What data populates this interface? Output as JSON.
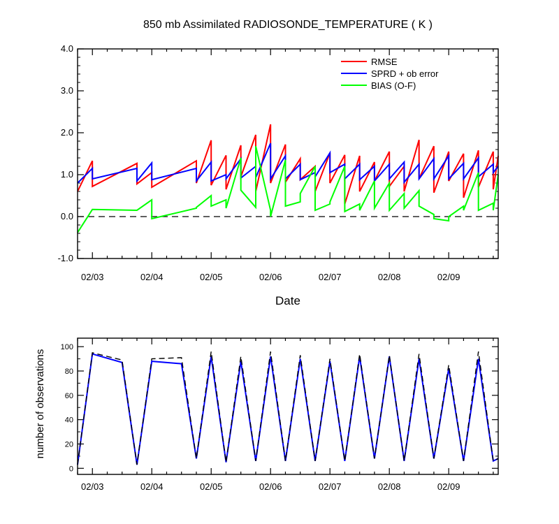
{
  "chart_data": [
    {
      "type": "line",
      "title": "850 mb Assimilated RADIOSONDE_TEMPERATURE ( K )",
      "xlabel": "Date",
      "ylabel": "",
      "xtick_labels": [
        "02/03",
        "02/04",
        "02/05",
        "02/06",
        "02/07",
        "02/08",
        "02/09"
      ],
      "yticks": [
        -1.0,
        0.0,
        1.0,
        2.0,
        3.0,
        4.0
      ],
      "ytick_labels": [
        "-1.0",
        "0.0",
        "1.0",
        "2.0",
        "3.0",
        "4.0"
      ],
      "xlim": [
        "2008-02-02 18:00",
        "2008-02-09 20:00"
      ],
      "ylim": [
        -1.0,
        4.0
      ],
      "grid": false,
      "legend_position": "top-right",
      "reference_line": {
        "y": 0.0,
        "style": "dashed",
        "color": "#000000"
      },
      "series": [
        {
          "name": "RMSE",
          "color": "#ff0000",
          "x": [
            "2008-02-02 18:00",
            "2008-02-03 00:00",
            "2008-02-03 00:00",
            "2008-02-03 18:00",
            "2008-02-03 18:00",
            "2008-02-04 00:00",
            "2008-02-04 00:00",
            "2008-02-04 18:00",
            "2008-02-04 18:00",
            "2008-02-05 00:00",
            "2008-02-05 00:00",
            "2008-02-05 06:00",
            "2008-02-05 06:00",
            "2008-02-05 12:00",
            "2008-02-05 12:00",
            "2008-02-05 18:00",
            "2008-02-05 18:00",
            "2008-02-06 00:00",
            "2008-02-06 00:00",
            "2008-02-06 06:00",
            "2008-02-06 06:00",
            "2008-02-06 12:00",
            "2008-02-06 12:00",
            "2008-02-06 18:00",
            "2008-02-06 18:00",
            "2008-02-07 00:00",
            "2008-02-07 00:00",
            "2008-02-07 06:00",
            "2008-02-07 06:00",
            "2008-02-07 12:00",
            "2008-02-07 12:00",
            "2008-02-07 18:00",
            "2008-02-07 18:00",
            "2008-02-08 00:00",
            "2008-02-08 00:00",
            "2008-02-08 06:00",
            "2008-02-08 06:00",
            "2008-02-08 12:00",
            "2008-02-08 12:00",
            "2008-02-08 18:00",
            "2008-02-08 18:00",
            "2008-02-09 00:00",
            "2008-02-09 00:00",
            "2008-02-09 06:00",
            "2008-02-09 06:00",
            "2008-02-09 12:00",
            "2008-02-09 12:00",
            "2008-02-09 18:00",
            "2008-02-09 18:00",
            "2008-02-09 20:00"
          ],
          "y": [
            0.6,
            1.33,
            0.72,
            1.27,
            0.78,
            1.05,
            0.7,
            1.33,
            0.8,
            1.82,
            0.75,
            1.46,
            0.65,
            1.7,
            0.95,
            1.95,
            0.6,
            2.2,
            0.8,
            1.72,
            0.82,
            1.38,
            0.88,
            1.2,
            0.6,
            1.52,
            0.8,
            1.47,
            0.3,
            1.45,
            0.6,
            1.3,
            0.85,
            1.55,
            0.72,
            1.2,
            0.6,
            1.83,
            0.9,
            1.68,
            0.57,
            1.55,
            0.85,
            1.5,
            0.45,
            1.58,
            0.7,
            1.55,
            0.65,
            1.45
          ]
        },
        {
          "name": "SPRD + ob error",
          "color": "#0000ff",
          "x": [
            "2008-02-02 18:00",
            "2008-02-03 00:00",
            "2008-02-03 00:00",
            "2008-02-03 18:00",
            "2008-02-03 18:00",
            "2008-02-04 00:00",
            "2008-02-04 00:00",
            "2008-02-04 18:00",
            "2008-02-04 18:00",
            "2008-02-05 00:00",
            "2008-02-05 00:00",
            "2008-02-05 06:00",
            "2008-02-05 06:00",
            "2008-02-05 12:00",
            "2008-02-05 12:00",
            "2008-02-05 18:00",
            "2008-02-05 18:00",
            "2008-02-06 00:00",
            "2008-02-06 00:00",
            "2008-02-06 06:00",
            "2008-02-06 06:00",
            "2008-02-06 12:00",
            "2008-02-06 12:00",
            "2008-02-06 18:00",
            "2008-02-06 18:00",
            "2008-02-07 00:00",
            "2008-02-07 00:00",
            "2008-02-07 06:00",
            "2008-02-07 06:00",
            "2008-02-07 12:00",
            "2008-02-07 12:00",
            "2008-02-07 18:00",
            "2008-02-07 18:00",
            "2008-02-08 00:00",
            "2008-02-08 00:00",
            "2008-02-08 06:00",
            "2008-02-08 06:00",
            "2008-02-08 12:00",
            "2008-02-08 12:00",
            "2008-02-08 18:00",
            "2008-02-08 18:00",
            "2008-02-09 00:00",
            "2008-02-09 00:00",
            "2008-02-09 06:00",
            "2008-02-09 06:00",
            "2008-02-09 12:00",
            "2008-02-09 12:00",
            "2008-02-09 18:00",
            "2008-02-09 18:00",
            "2008-02-09 20:00"
          ],
          "y": [
            0.8,
            1.15,
            0.9,
            1.15,
            0.85,
            1.28,
            0.88,
            1.15,
            0.85,
            1.3,
            0.85,
            1.0,
            0.9,
            1.38,
            0.92,
            1.2,
            0.93,
            1.75,
            0.9,
            1.45,
            0.9,
            1.25,
            0.88,
            1.05,
            0.95,
            1.52,
            1.05,
            1.25,
            0.9,
            1.25,
            0.88,
            1.2,
            0.85,
            1.25,
            0.9,
            1.3,
            0.82,
            1.25,
            0.9,
            1.38,
            0.9,
            1.45,
            0.9,
            1.27,
            0.9,
            1.4,
            0.95,
            1.25,
            1.05,
            1.2
          ]
        },
        {
          "name": "BIAS (O-F)",
          "color": "#00ff00",
          "x": [
            "2008-02-02 18:00",
            "2008-02-03 00:00",
            "2008-02-03 18:00",
            "2008-02-04 00:00",
            "2008-02-04 00:00",
            "2008-02-04 18:00",
            "2008-02-04 18:00",
            "2008-02-05 00:00",
            "2008-02-05 00:00",
            "2008-02-05 06:00",
            "2008-02-05 06:00",
            "2008-02-05 12:00",
            "2008-02-05 12:00",
            "2008-02-05 18:00",
            "2008-02-05 18:00",
            "2008-02-06 00:00",
            "2008-02-06 00:00",
            "2008-02-06 06:00",
            "2008-02-06 06:00",
            "2008-02-06 12:00",
            "2008-02-06 12:00",
            "2008-02-06 18:00",
            "2008-02-06 18:00",
            "2008-02-07 00:00",
            "2008-02-07 00:00",
            "2008-02-07 06:00",
            "2008-02-07 06:00",
            "2008-02-07 12:00",
            "2008-02-07 12:00",
            "2008-02-07 18:00",
            "2008-02-07 18:00",
            "2008-02-08 00:00",
            "2008-02-08 00:00",
            "2008-02-08 06:00",
            "2008-02-08 06:00",
            "2008-02-08 12:00",
            "2008-02-08 12:00",
            "2008-02-08 18:00",
            "2008-02-08 18:00",
            "2008-02-09 00:00",
            "2008-02-09 00:00",
            "2008-02-09 06:00",
            "2008-02-09 06:00",
            "2008-02-09 12:00",
            "2008-02-09 12:00",
            "2008-02-09 18:00",
            "2008-02-09 18:00",
            "2008-02-09 20:00"
          ],
          "y": [
            -0.38,
            0.17,
            0.15,
            0.4,
            -0.05,
            0.2,
            0.22,
            0.5,
            0.25,
            0.4,
            0.2,
            1.4,
            0.63,
            0.22,
            1.68,
            0.15,
            0.0,
            1.35,
            0.25,
            0.35,
            0.55,
            1.2,
            0.15,
            0.3,
            0.35,
            1.2,
            0.12,
            0.3,
            0.15,
            0.85,
            0.2,
            0.8,
            0.15,
            0.55,
            0.2,
            0.62,
            0.25,
            0.05,
            -0.05,
            -0.1,
            0.0,
            0.25,
            0.15,
            1.05,
            0.15,
            0.32,
            0.15,
            1.0
          ]
        }
      ]
    },
    {
      "type": "line",
      "title": "",
      "xlabel": "",
      "ylabel": "number of observations",
      "xtick_labels": [
        "02/03",
        "02/04",
        "02/05",
        "02/06",
        "02/07",
        "02/08",
        "02/09"
      ],
      "yticks": [
        0,
        20,
        40,
        60,
        80,
        100
      ],
      "ytick_labels": [
        "0",
        "20",
        "40",
        "60",
        "80",
        "100"
      ],
      "xlim": [
        "2008-02-02 18:00",
        "2008-02-09 20:00"
      ],
      "ylim": [
        -5,
        107
      ],
      "grid": false,
      "series": [
        {
          "color": "#0000ff",
          "style": "solid",
          "x": [
            "2008-02-02 18:00",
            "2008-02-03 00:00",
            "2008-02-03 12:00",
            "2008-02-03 18:00",
            "2008-02-04 00:00",
            "2008-02-04 12:00",
            "2008-02-04 18:00",
            "2008-02-05 00:00",
            "2008-02-05 06:00",
            "2008-02-05 12:00",
            "2008-02-05 18:00",
            "2008-02-06 00:00",
            "2008-02-06 06:00",
            "2008-02-06 12:00",
            "2008-02-06 18:00",
            "2008-02-07 00:00",
            "2008-02-07 06:00",
            "2008-02-07 12:00",
            "2008-02-07 18:00",
            "2008-02-08 00:00",
            "2008-02-08 06:00",
            "2008-02-08 12:00",
            "2008-02-08 18:00",
            "2008-02-09 00:00",
            "2008-02-09 06:00",
            "2008-02-09 12:00",
            "2008-02-09 18:00",
            "2008-02-09 20:00"
          ],
          "y": [
            3,
            94,
            87,
            3,
            88,
            86,
            8,
            92,
            5,
            88,
            6,
            92,
            6,
            90,
            6,
            88,
            6,
            92,
            8,
            92,
            6,
            90,
            8,
            82,
            6,
            90,
            6,
            8
          ]
        },
        {
          "color": "#000000",
          "style": "dashed",
          "x": [
            "2008-02-02 18:00",
            "2008-02-03 00:00",
            "2008-02-03 12:00",
            "2008-02-03 18:00",
            "2008-02-04 00:00",
            "2008-02-04 12:00",
            "2008-02-04 18:00",
            "2008-02-05 00:00",
            "2008-02-05 06:00",
            "2008-02-05 12:00",
            "2008-02-05 18:00",
            "2008-02-06 00:00",
            "2008-02-06 06:00",
            "2008-02-06 12:00",
            "2008-02-06 18:00",
            "2008-02-07 00:00",
            "2008-02-07 06:00",
            "2008-02-07 12:00",
            "2008-02-07 18:00",
            "2008-02-08 00:00",
            "2008-02-08 06:00",
            "2008-02-08 12:00",
            "2008-02-08 18:00",
            "2008-02-09 00:00",
            "2008-02-09 06:00",
            "2008-02-09 12:00",
            "2008-02-09 18:00",
            "2008-02-09 20:00"
          ],
          "y": [
            3,
            95,
            89,
            3,
            90,
            91,
            8,
            96,
            5,
            92,
            6,
            96,
            6,
            93,
            6,
            90,
            6,
            94,
            8,
            93,
            6,
            94,
            8,
            85,
            6,
            96,
            6,
            8
          ]
        }
      ]
    }
  ]
}
